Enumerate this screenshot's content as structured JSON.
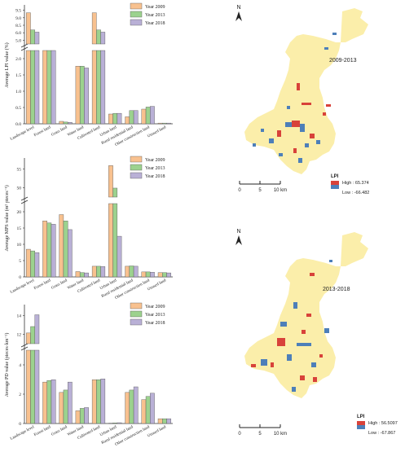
{
  "colors": {
    "year2009": "#f8c18f",
    "year2013": "#9cd28e",
    "year2018": "#b9b0d6",
    "map_base": "#fbeeaa",
    "map_high": "#d8423a",
    "map_low": "#4d7fb9"
  },
  "legend": [
    "Year 2009",
    "Year 2013",
    "Year 2018"
  ],
  "chart_data": [
    {
      "type": "bar",
      "categories": [
        "Landscape level",
        "Forest land",
        "Grass land",
        "Water land",
        "Cultivated land",
        "Urban land",
        "Rural residential land",
        "Other construction land",
        "Unused land"
      ],
      "series": [
        {
          "name": "Year 2009",
          "values": [
            9.3,
            5.55,
            0.07,
            1.65,
            9.3,
            0.28,
            0.2,
            0.42,
            0.02
          ]
        },
        {
          "name": "Year 2013",
          "values": [
            8.75,
            5.55,
            0.05,
            1.65,
            8.75,
            0.3,
            0.38,
            0.48,
            0.02
          ]
        },
        {
          "name": "Year 2018",
          "values": [
            8.68,
            5.55,
            0.04,
            1.6,
            8.68,
            0.3,
            0.38,
            0.5,
            0.02
          ]
        }
      ],
      "ylabel": "Average LPI value (%)",
      "yticks_lower": [
        "0.0",
        "0.5",
        "1.0",
        "1.5",
        "2.0"
      ],
      "yticks_upper": [
        "5.0",
        "6.0",
        "8.5",
        "9.0",
        "9.5"
      ],
      "ylim_lower": [
        0,
        2.1
      ],
      "ylim_upper": [
        8.3,
        9.5
      ]
    },
    {
      "type": "bar",
      "categories": [
        "Landscape level",
        "Forest land",
        "Grass land",
        "Water land",
        "Cultivated land",
        "Urban land",
        "Rural residential land",
        "Other construction land",
        "Unused land"
      ],
      "series": [
        {
          "name": "Year 2009",
          "values": [
            8.3,
            16.8,
            18.7,
            1.6,
            3.2,
            51.0,
            3.2,
            1.5,
            1.3
          ]
        },
        {
          "name": "Year 2013",
          "values": [
            7.8,
            16.2,
            16.8,
            1.3,
            3.2,
            36.0,
            3.3,
            1.5,
            1.3
          ]
        },
        {
          "name": "Year 2018",
          "values": [
            7.3,
            15.8,
            14.2,
            1.2,
            3.1,
            12.2,
            3.2,
            1.4,
            1.2
          ]
        }
      ],
      "ylabel": "Average MPS value (m² pieces⁻¹)",
      "yticks_lower": [
        "0",
        "5",
        "10",
        "15",
        "20"
      ],
      "yticks_upper": [
        "50",
        "55"
      ],
      "ylim_lower": [
        0,
        22
      ],
      "ylim_upper": [
        30,
        55
      ]
    },
    {
      "type": "bar",
      "categories": [
        "Landscape level",
        "Forest land",
        "Grass land",
        "Water land",
        "Cultivated land",
        "Urban land",
        "Rural residential land",
        "Other construction land",
        "Unused land"
      ],
      "series": [
        {
          "name": "Year 2009",
          "values": [
            12.0,
            2.6,
            1.95,
            0.8,
            2.75,
            0.02,
            1.95,
            1.5,
            0.3
          ]
        },
        {
          "name": "Year 2013",
          "values": [
            12.6,
            2.7,
            2.1,
            0.95,
            2.75,
            0.04,
            2.1,
            1.7,
            0.3
          ]
        },
        {
          "name": "Year 2018",
          "values": [
            13.7,
            2.75,
            2.6,
            1.0,
            2.8,
            0.05,
            2.3,
            1.9,
            0.3
          ]
        }
      ],
      "ylabel": "Average PD value (pieces·km⁻²)",
      "yticks_lower": [
        "0",
        "2",
        "4"
      ],
      "yticks_upper": [
        "12",
        "14"
      ],
      "ylim_lower": [
        0,
        4.6
      ],
      "ylim_upper": [
        11,
        14.5
      ]
    }
  ],
  "maps": [
    {
      "period": "2009-2013",
      "north": "N",
      "legend_title": "LPI",
      "high_label": "High : 65.374",
      "low_label": "Low : -66.482",
      "scale_labels": [
        "0",
        "5",
        "10 km"
      ]
    },
    {
      "period": "2013-2018",
      "north": "N",
      "legend_title": "LPI",
      "high_label": "High : 56.5097",
      "low_label": "Low : -67.867",
      "scale_labels": [
        "0",
        "5",
        "10 km"
      ]
    }
  ]
}
